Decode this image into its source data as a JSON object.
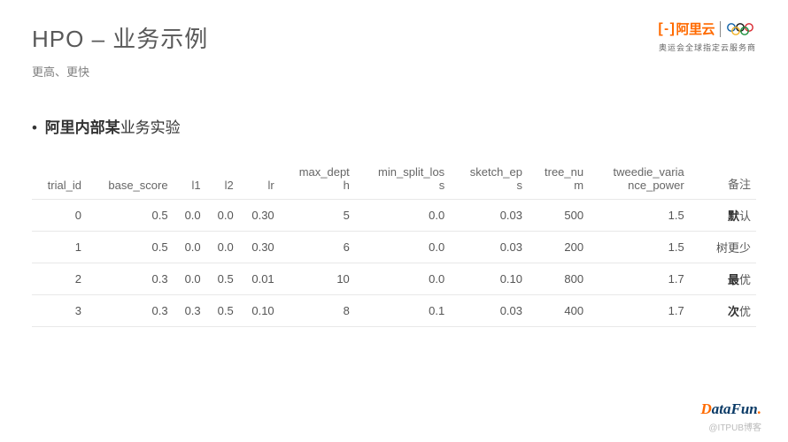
{
  "header": {
    "title": "HPO – 业务示例",
    "subtitle": "更高、更快",
    "logo_text": "阿里云",
    "logo_sub": "奥运会全球指定云服务商"
  },
  "section": {
    "bullet_bold": "阿里内部某",
    "bullet_rest": "业务实验"
  },
  "table": {
    "columns": [
      "trial_id",
      "base_score",
      "l1",
      "l2",
      "lr",
      "max_depth",
      "min_split_loss",
      "sketch_eps",
      "tree_num",
      "tweedie_variance_power",
      "备注"
    ],
    "col_keys": [
      "trial_id",
      "base_score",
      "l1",
      "l2",
      "lr",
      "max_depth",
      "min_split_loss",
      "sketch_eps",
      "tree_num",
      "tweedie_variance_power",
      "note"
    ],
    "header_breaks": {
      "max_depth": "max_depth",
      "min_split_loss": "min_split_loss",
      "sketch_eps": "sketch_eps",
      "tree_num": "tree_num",
      "tweedie_variance_power": "tweedie_variance_power"
    },
    "rows": [
      {
        "trial_id": "0",
        "base_score": "0.5",
        "l1": "0.0",
        "l2": "0.0",
        "lr": "0.30",
        "max_depth": "5",
        "min_split_loss": "0.0",
        "sketch_eps": "0.03",
        "tree_num": "500",
        "tweedie_variance_power": "1.5",
        "note": "默认",
        "note_bold": "默"
      },
      {
        "trial_id": "1",
        "base_score": "0.5",
        "l1": "0.0",
        "l2": "0.0",
        "lr": "0.30",
        "max_depth": "6",
        "min_split_loss": "0.0",
        "sketch_eps": "0.03",
        "tree_num": "200",
        "tweedie_variance_power": "1.5",
        "note": "树更少",
        "note_bold": ""
      },
      {
        "trial_id": "2",
        "base_score": "0.3",
        "l1": "0.0",
        "l2": "0.5",
        "lr": "0.01",
        "max_depth": "10",
        "min_split_loss": "0.0",
        "sketch_eps": "0.10",
        "tree_num": "800",
        "tweedie_variance_power": "1.7",
        "note": "最优",
        "note_bold": "最"
      },
      {
        "trial_id": "3",
        "base_score": "0.3",
        "l1": "0.3",
        "l2": "0.5",
        "lr": "0.10",
        "max_depth": "8",
        "min_split_loss": "0.1",
        "sketch_eps": "0.03",
        "tree_num": "400",
        "tweedie_variance_power": "1.7",
        "note": "次优",
        "note_bold": "次"
      }
    ],
    "header_color": "#666666",
    "cell_color": "#555555",
    "border_color": "#e8e8e8",
    "font_size_pt": 10
  },
  "footer": {
    "brand_d": "D",
    "brand_rest": "ataFun",
    "brand_dot": ".",
    "watermark": "@ITPUB博客"
  },
  "colors": {
    "accent": "#ff6a00",
    "title": "#595959",
    "subtitle": "#808080",
    "brand_blue": "#0a3a66",
    "background": "#ffffff"
  }
}
